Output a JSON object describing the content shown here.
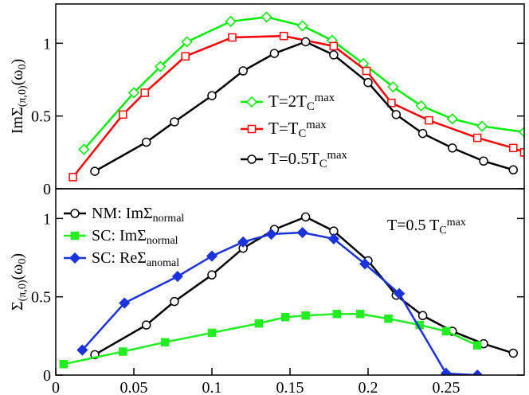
{
  "chart_data": [
    {
      "type": "line",
      "xlim": [
        0,
        0.3
      ],
      "ylim": [
        0,
        1.27
      ],
      "yticks": [
        0,
        0.5,
        1
      ],
      "ylabel": [
        {
          "text": "ImΣ",
          "pos": "base"
        },
        {
          "text": "(π,0)",
          "pos": "sub"
        },
        {
          "text": "(ω",
          "pos": "base"
        },
        {
          "text": "0",
          "pos": "sub"
        },
        {
          "text": ")",
          "pos": "base"
        }
      ],
      "series": [
        {
          "name": [
            {
              "text": "T=2T",
              "pos": "base"
            },
            {
              "text": "C",
              "pos": "sub"
            },
            {
              "text": "max",
              "pos": "sup"
            }
          ],
          "color": "#00ee00",
          "marker": "diamond",
          "filled": false,
          "x": [
            0.018,
            0.05,
            0.067,
            0.084,
            0.112,
            0.135,
            0.158,
            0.177,
            0.197,
            0.216,
            0.234,
            0.254,
            0.273,
            0.3
          ],
          "values": [
            0.27,
            0.66,
            0.84,
            1.01,
            1.15,
            1.18,
            1.12,
            1.02,
            0.86,
            0.7,
            0.57,
            0.48,
            0.43,
            0.39
          ]
        },
        {
          "name": [
            {
              "text": "T=T",
              "pos": "base"
            },
            {
              "text": "C",
              "pos": "sub"
            },
            {
              "text": "max",
              "pos": "sup"
            }
          ],
          "color": "#ff0000",
          "marker": "square",
          "filled": false,
          "x": [
            0.011,
            0.043,
            0.057,
            0.083,
            0.113,
            0.146,
            0.178,
            0.199,
            0.215,
            0.239,
            0.27,
            0.293,
            0.3
          ],
          "values": [
            0.08,
            0.51,
            0.66,
            0.91,
            1.04,
            1.05,
            0.98,
            0.81,
            0.59,
            0.47,
            0.35,
            0.28,
            0.25
          ]
        },
        {
          "name": [
            {
              "text": "T=0.5T",
              "pos": "base"
            },
            {
              "text": "C",
              "pos": "sub"
            },
            {
              "text": "max",
              "pos": "sup"
            }
          ],
          "color": "#000000",
          "marker": "circle",
          "filled": false,
          "x": [
            0.025,
            0.058,
            0.076,
            0.1,
            0.12,
            0.14,
            0.16,
            0.178,
            0.2,
            0.218,
            0.235,
            0.254,
            0.274,
            0.293
          ],
          "values": [
            0.12,
            0.32,
            0.46,
            0.64,
            0.81,
            0.93,
            1.01,
            0.92,
            0.73,
            0.51,
            0.38,
            0.28,
            0.19,
            0.13
          ]
        }
      ]
    },
    {
      "type": "line",
      "xlim": [
        0,
        0.3
      ],
      "ylim": [
        0,
        1.19
      ],
      "yticks": [
        0,
        0.5,
        1
      ],
      "xticks": [
        0,
        0.05,
        0.1,
        0.15,
        0.2,
        0.25
      ],
      "ylabel": [
        {
          "text": "Σ",
          "pos": "base"
        },
        {
          "text": "(π,0)",
          "pos": "sub"
        },
        {
          "text": "(ω",
          "pos": "base"
        },
        {
          "text": "0",
          "pos": "sub"
        },
        {
          "text": ")",
          "pos": "base"
        }
      ],
      "annotation": [
        {
          "text": "T=0.5 T",
          "pos": "base"
        },
        {
          "text": "C",
          "pos": "sub"
        },
        {
          "text": "max",
          "pos": "sup"
        }
      ],
      "series": [
        {
          "name": [
            {
              "text": "NM: ImΣ",
              "pos": "base"
            },
            {
              "text": "normal",
              "pos": "sub"
            }
          ],
          "color": "#000000",
          "marker": "circle",
          "filled": false,
          "x": [
            0.025,
            0.058,
            0.076,
            0.1,
            0.12,
            0.14,
            0.16,
            0.178,
            0.2,
            0.218,
            0.235,
            0.254,
            0.274,
            0.293
          ],
          "values": [
            0.13,
            0.32,
            0.47,
            0.64,
            0.81,
            0.93,
            1.01,
            0.92,
            0.73,
            0.51,
            0.38,
            0.28,
            0.2,
            0.14
          ]
        },
        {
          "name": [
            {
              "text": "SC: ImΣ",
              "pos": "base"
            },
            {
              "text": "normal",
              "pos": "sub"
            }
          ],
          "color": "#22ee22",
          "marker": "square",
          "filled": true,
          "x": [
            0.005,
            0.043,
            0.07,
            0.1,
            0.13,
            0.147,
            0.16,
            0.18,
            0.195,
            0.213,
            0.233,
            0.25,
            0.27
          ],
          "values": [
            0.07,
            0.15,
            0.21,
            0.27,
            0.33,
            0.37,
            0.38,
            0.39,
            0.39,
            0.36,
            0.32,
            0.28,
            0.19
          ]
        },
        {
          "name": [
            {
              "text": "SC: ReΣ",
              "pos": "base"
            },
            {
              "text": "anomal",
              "pos": "sub"
            }
          ],
          "color": "#1a33dd",
          "marker": "diamond",
          "filled": true,
          "x": [
            0.017,
            0.044,
            0.078,
            0.1,
            0.12,
            0.138,
            0.158,
            0.178,
            0.198,
            0.22,
            0.25,
            0.27
          ],
          "values": [
            0.16,
            0.46,
            0.63,
            0.76,
            0.85,
            0.9,
            0.91,
            0.87,
            0.71,
            0.52,
            0.01,
            0.0
          ]
        }
      ]
    }
  ]
}
